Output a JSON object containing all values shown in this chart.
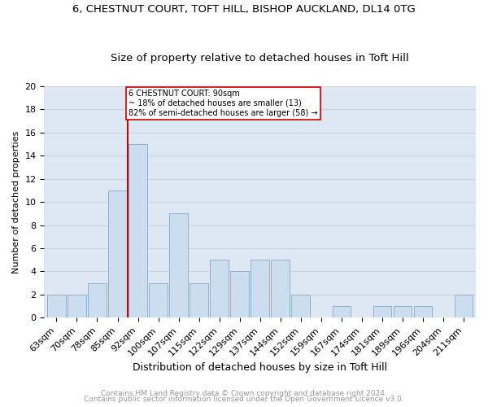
{
  "title1": "6, CHESTNUT COURT, TOFT HILL, BISHOP AUCKLAND, DL14 0TG",
  "title2": "Size of property relative to detached houses in Toft Hill",
  "xlabel": "Distribution of detached houses by size in Toft Hill",
  "ylabel": "Number of detached properties",
  "categories": [
    "63sqm",
    "70sqm",
    "78sqm",
    "85sqm",
    "92sqm",
    "100sqm",
    "107sqm",
    "115sqm",
    "122sqm",
    "129sqm",
    "137sqm",
    "144sqm",
    "152sqm",
    "159sqm",
    "167sqm",
    "174sqm",
    "181sqm",
    "189sqm",
    "196sqm",
    "204sqm",
    "211sqm"
  ],
  "values": [
    2,
    2,
    3,
    11,
    15,
    3,
    9,
    3,
    5,
    4,
    5,
    5,
    2,
    0,
    1,
    0,
    1,
    1,
    1,
    0,
    2
  ],
  "bar_color": "#ccddf0",
  "bar_edge_color": "#90b0cc",
  "vline_x_index": 4,
  "vline_color": "#cc0000",
  "annotation_line1": "6 CHESTNUT COURT: 90sqm",
  "annotation_line2": "~ 18% of detached houses are smaller (13)",
  "annotation_line3": "82% of semi-detached houses are larger (58) →",
  "annotation_box_color": "#cc0000",
  "annotation_box_fill": "#ffffff",
  "ylim": [
    0,
    20
  ],
  "yticks": [
    0,
    2,
    4,
    6,
    8,
    10,
    12,
    14,
    16,
    18,
    20
  ],
  "grid_color": "#c8d4e0",
  "bg_color": "#dde8f4",
  "footer1": "Contains HM Land Registry data © Crown copyright and database right 2024.",
  "footer2": "Contains public sector information licensed under the Open Government Licence v3.0.",
  "title1_fontsize": 9.5,
  "title2_fontsize": 9.5,
  "xlabel_fontsize": 9,
  "ylabel_fontsize": 8,
  "tick_fontsize": 8,
  "footer_fontsize": 6.5
}
